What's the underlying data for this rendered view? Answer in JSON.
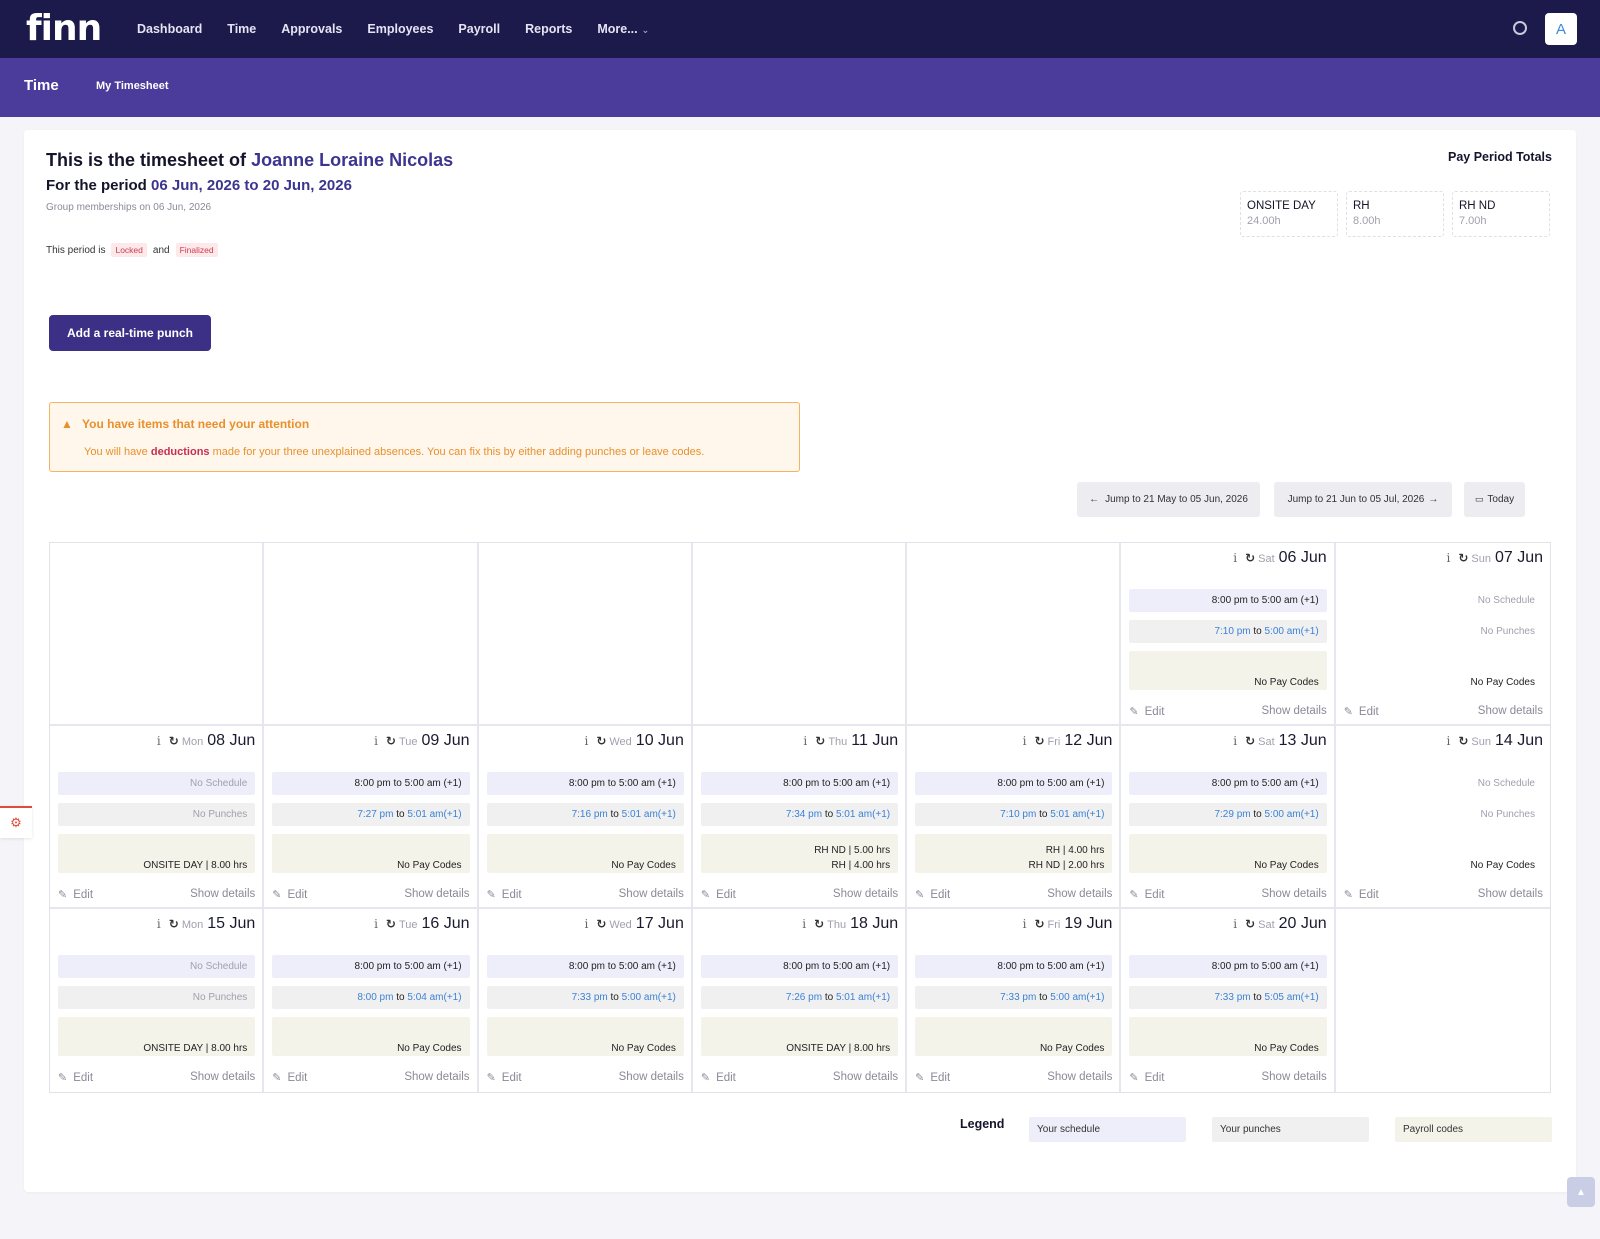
{
  "nav": {
    "logo": "finn",
    "items": [
      "Dashboard",
      "Time",
      "Approvals",
      "Employees",
      "Payroll",
      "Reports",
      "More..."
    ],
    "avatar": "A"
  },
  "subnav": {
    "title": "Time",
    "tab": "My Timesheet"
  },
  "header": {
    "title_prefix": "This is the timesheet of",
    "employee": "Joanne Loraine Nicolas",
    "period_prefix": "For the period",
    "period": "06 Jun, 2026 to 20 Jun, 2026",
    "group_note": "Group memberships on 06 Jun, 2026",
    "status_prefix": "This period is",
    "status_locked": "Locked",
    "status_and": "and",
    "status_finalized": "Finalized"
  },
  "totals": {
    "title": "Pay Period Totals",
    "items": [
      {
        "label": "ONSITE DAY",
        "value": "24.00h"
      },
      {
        "label": "RH",
        "value": "8.00h"
      },
      {
        "label": "RH ND",
        "value": "7.00h"
      }
    ]
  },
  "actions": {
    "punch_button": "Add a real-time punch"
  },
  "alert": {
    "title": "You have items that need your attention",
    "body_pre": "You will have",
    "body_emph": "deductions",
    "body_post": "made for your three unexplained absences. You can fix this by either adding punches or leave codes."
  },
  "jump": {
    "prev": "Jump to 21 May to 05 Jun, 2026",
    "next": "Jump to 21 Jun to 05 Jul, 2026",
    "today": "Today"
  },
  "calendar": {
    "edit_label": "Edit",
    "details_label": "Show details",
    "days": [
      {
        "empty": true
      },
      {
        "empty": true
      },
      {
        "empty": true
      },
      {
        "empty": true
      },
      {
        "empty": true
      },
      {
        "dow": "Sat",
        "date": "06 Jun",
        "schedule": "8:00 pm to 5:00 am (+1)",
        "punch_in": "7:10 pm",
        "punch_out": "5:00 am(+1)",
        "codes": []
      },
      {
        "dow": "Sun",
        "date": "07 Jun",
        "schedule": "",
        "punch_in": "",
        "punch_out": "",
        "codes": [],
        "plain": true
      },
      {
        "dow": "Mon",
        "date": "08 Jun",
        "schedule": "",
        "punch_in": "",
        "punch_out": "",
        "codes": [
          "ONSITE DAY | 8.00 hrs"
        ]
      },
      {
        "dow": "Tue",
        "date": "09 Jun",
        "schedule": "8:00 pm to 5:00 am (+1)",
        "punch_in": "7:27 pm",
        "punch_out": "5:01 am(+1)",
        "codes": []
      },
      {
        "dow": "Wed",
        "date": "10 Jun",
        "schedule": "8:00 pm to 5:00 am (+1)",
        "punch_in": "7:16 pm",
        "punch_out": "5:01 am(+1)",
        "codes": []
      },
      {
        "dow": "Thu",
        "date": "11 Jun",
        "schedule": "8:00 pm to 5:00 am (+1)",
        "punch_in": "7:34 pm",
        "punch_out": "5:01 am(+1)",
        "codes": [
          "RH ND | 5.00 hrs",
          "RH | 4.00 hrs"
        ]
      },
      {
        "dow": "Fri",
        "date": "12 Jun",
        "schedule": "8:00 pm to 5:00 am (+1)",
        "punch_in": "7:10 pm",
        "punch_out": "5:01 am(+1)",
        "codes": [
          "RH | 4.00 hrs",
          "RH ND | 2.00 hrs"
        ]
      },
      {
        "dow": "Sat",
        "date": "13 Jun",
        "schedule": "8:00 pm to 5:00 am (+1)",
        "punch_in": "7:29 pm",
        "punch_out": "5:00 am(+1)",
        "codes": []
      },
      {
        "dow": "Sun",
        "date": "14 Jun",
        "schedule": "",
        "punch_in": "",
        "punch_out": "",
        "codes": [],
        "plain": true
      },
      {
        "dow": "Mon",
        "date": "15 Jun",
        "schedule": "",
        "punch_in": "",
        "punch_out": "",
        "codes": [
          "ONSITE DAY | 8.00 hrs"
        ]
      },
      {
        "dow": "Tue",
        "date": "16 Jun",
        "schedule": "8:00 pm to 5:00 am (+1)",
        "punch_in": "8:00 pm",
        "punch_out": "5:04 am(+1)",
        "codes": []
      },
      {
        "dow": "Wed",
        "date": "17 Jun",
        "schedule": "8:00 pm to 5:00 am (+1)",
        "punch_in": "7:33 pm",
        "punch_out": "5:00 am(+1)",
        "codes": []
      },
      {
        "dow": "Thu",
        "date": "18 Jun",
        "schedule": "8:00 pm to 5:00 am (+1)",
        "punch_in": "7:26 pm",
        "punch_out": "5:01 am(+1)",
        "codes": [
          "ONSITE DAY | 8.00 hrs"
        ]
      },
      {
        "dow": "Fri",
        "date": "19 Jun",
        "schedule": "8:00 pm to 5:00 am (+1)",
        "punch_in": "7:33 pm",
        "punch_out": "5:00 am(+1)",
        "codes": []
      },
      {
        "dow": "Sat",
        "date": "20 Jun",
        "schedule": "8:00 pm to 5:00 am (+1)",
        "punch_in": "7:33 pm",
        "punch_out": "5:05 am(+1)",
        "codes": []
      },
      {
        "empty": true
      }
    ],
    "no_schedule": "No Schedule",
    "no_punches": "No Punches",
    "no_codes": "No Pay Codes",
    "to": "to"
  },
  "legend": {
    "title": "Legend",
    "items": [
      "Your schedule",
      "Your punches",
      "Payroll codes"
    ]
  },
  "colors": {
    "topnav": "#1c1a4a",
    "subnav": "#4b3b9a",
    "accent": "#3c3590",
    "schedule_bg": "#eeeefa",
    "punch_bg": "#f0f0f1",
    "codes_bg": "#f4f3ea",
    "alert": "#e8902d",
    "badge": "#d13b53",
    "link": "#3b82d6"
  }
}
